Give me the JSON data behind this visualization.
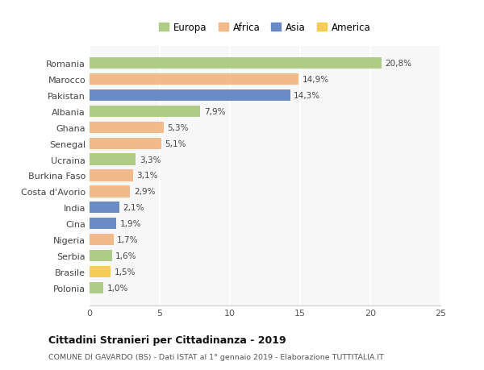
{
  "countries": [
    "Romania",
    "Marocco",
    "Pakistan",
    "Albania",
    "Ghana",
    "Senegal",
    "Ucraina",
    "Burkina Faso",
    "Costa d'Avorio",
    "India",
    "Cina",
    "Nigeria",
    "Serbia",
    "Brasile",
    "Polonia"
  ],
  "values": [
    20.8,
    14.9,
    14.3,
    7.9,
    5.3,
    5.1,
    3.3,
    3.1,
    2.9,
    2.1,
    1.9,
    1.7,
    1.6,
    1.5,
    1.0
  ],
  "labels": [
    "20,8%",
    "14,9%",
    "14,3%",
    "7,9%",
    "5,3%",
    "5,1%",
    "3,3%",
    "3,1%",
    "2,9%",
    "2,1%",
    "1,9%",
    "1,7%",
    "1,6%",
    "1,5%",
    "1,0%"
  ],
  "continents": [
    "Europa",
    "Africa",
    "Asia",
    "Europa",
    "Africa",
    "Africa",
    "Europa",
    "Africa",
    "Africa",
    "Asia",
    "Asia",
    "Africa",
    "Europa",
    "America",
    "Europa"
  ],
  "colors": {
    "Europa": "#a8c87a",
    "Africa": "#f2b47e",
    "Asia": "#5b7fc0",
    "America": "#f5c842"
  },
  "title": "Cittadini Stranieri per Cittadinanza - 2019",
  "subtitle": "COMUNE DI GAVARDO (BS) - Dati ISTAT al 1° gennaio 2019 - Elaborazione TUTTITALIA.IT",
  "xlim": [
    0,
    25
  ],
  "xticks": [
    0,
    5,
    10,
    15,
    20,
    25
  ],
  "background_color": "#ffffff",
  "plot_bg": "#f7f7f7"
}
